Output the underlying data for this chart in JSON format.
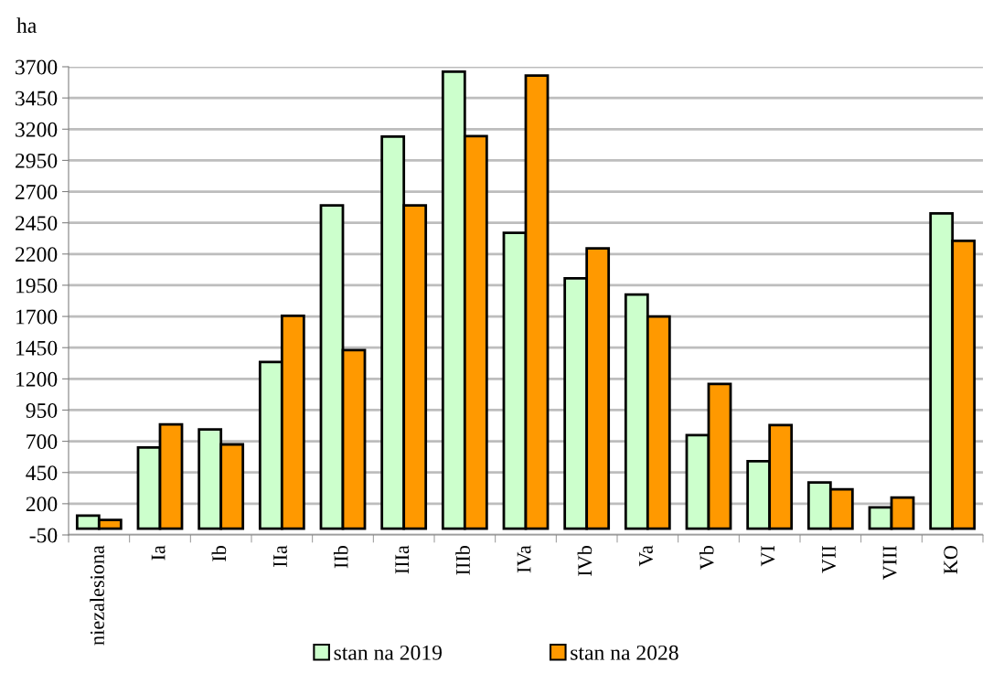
{
  "chart_data": {
    "type": "bar",
    "ylabel": "ha",
    "categories": [
      "niezalesiona",
      "Ia",
      "Ib",
      "IIa",
      "IIb",
      "IIIa",
      "IIIb",
      "IVa",
      "IVb",
      "Va",
      "Vb",
      "VI",
      "VII",
      "VIII",
      "KO"
    ],
    "series": [
      {
        "name": "stan na 2019",
        "color": "#ccffcc",
        "values": [
          105,
          650,
          795,
          1335,
          2590,
          3140,
          3660,
          2370,
          2005,
          1875,
          750,
          540,
          370,
          170,
          2525
        ]
      },
      {
        "name": "stan na 2028",
        "color": "#ff9900",
        "values": [
          70,
          835,
          675,
          1705,
          1430,
          2590,
          3145,
          3630,
          2245,
          1700,
          1160,
          830,
          315,
          250,
          2305
        ]
      }
    ],
    "ylim": [
      -50,
      3700
    ],
    "yticks": [
      -50,
      200,
      450,
      700,
      950,
      1200,
      1450,
      1700,
      1950,
      2200,
      2450,
      2700,
      2950,
      3200,
      3450,
      3700
    ],
    "grid": "y",
    "legend": "bottom"
  }
}
